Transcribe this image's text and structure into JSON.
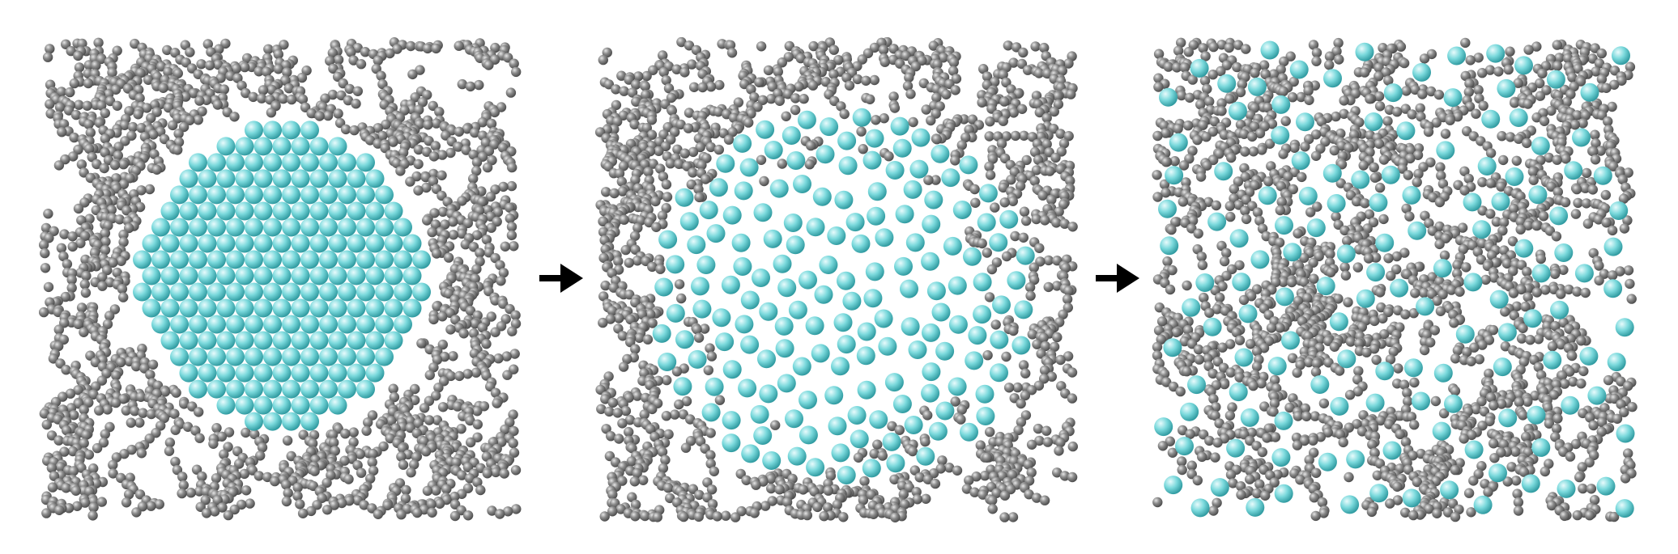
{
  "figure": {
    "stages": [
      {
        "id": "initial",
        "cluster": "compact-round-aggregate"
      },
      {
        "id": "intermediate",
        "cluster": "expanded-aggregate"
      },
      {
        "id": "final",
        "cluster": "dispersed"
      }
    ],
    "transitions": [
      {
        "from": "initial",
        "to": "intermediate",
        "icon": "right-arrow-icon"
      },
      {
        "from": "intermediate",
        "to": "final",
        "icon": "right-arrow-icon"
      }
    ]
  },
  "colors": {
    "background": "#ffffff",
    "matrix_particle": "#8c8c8c",
    "matrix_particle_highlight": "#e6e6e6",
    "matrix_particle_shadow": "#4a4a4a",
    "solute_particle": "#7ad9dc",
    "solute_particle_highlight": "#e8fbfc",
    "solute_particle_shadow": "#2f9aa0",
    "arrow": "#000000"
  }
}
